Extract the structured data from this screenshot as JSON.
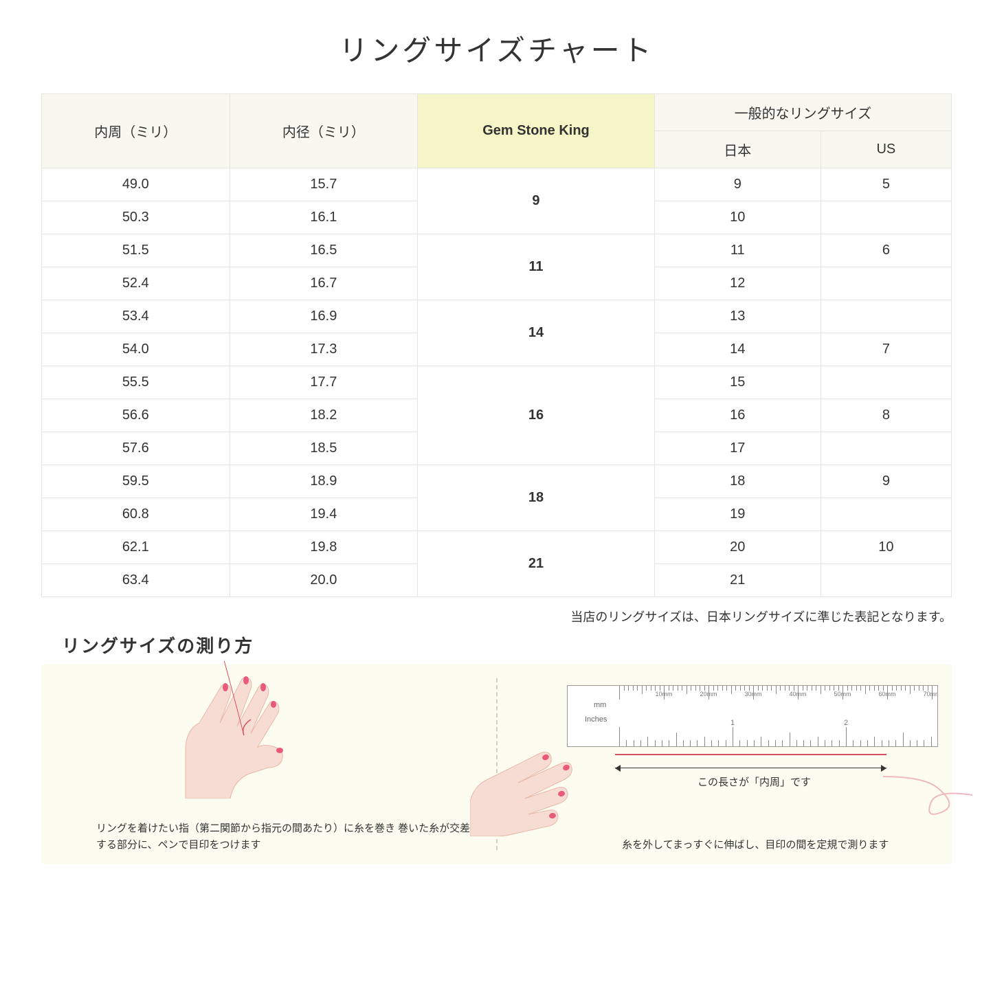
{
  "title": "リングサイズチャート",
  "note": "当店のリングサイズは、日本リングサイズに準じた表記となります。",
  "howto_title": "リングサイズの測り方",
  "table": {
    "headers": {
      "circumference": "内周（ミリ）",
      "diameter": "内径（ミリ）",
      "gsk": "Gem Stone King",
      "common": "一般的なリングサイズ",
      "japan": "日本",
      "us": "US"
    },
    "highlight_bg": "#f5f5c8",
    "header_bg": "#f8f8f0",
    "border_color": "#e5e5e0",
    "rows": [
      {
        "circ": "49.0",
        "dia": "15.7",
        "gsk": "9",
        "gsk_span": 2,
        "jp": "9",
        "us": "5"
      },
      {
        "circ": "50.3",
        "dia": "16.1",
        "jp": "10",
        "us": ""
      },
      {
        "circ": "51.5",
        "dia": "16.5",
        "gsk": "11",
        "gsk_span": 2,
        "jp": "11",
        "us": "6"
      },
      {
        "circ": "52.4",
        "dia": "16.7",
        "jp": "12",
        "us": ""
      },
      {
        "circ": "53.4",
        "dia": "16.9",
        "gsk": "14",
        "gsk_span": 2,
        "jp": "13",
        "us": ""
      },
      {
        "circ": "54.0",
        "dia": "17.3",
        "jp": "14",
        "us": "7"
      },
      {
        "circ": "55.5",
        "dia": "17.7",
        "gsk": "16",
        "gsk_span": 3,
        "jp": "15",
        "us": ""
      },
      {
        "circ": "56.6",
        "dia": "18.2",
        "jp": "16",
        "us": "8"
      },
      {
        "circ": "57.6",
        "dia": "18.5",
        "jp": "17",
        "us": ""
      },
      {
        "circ": "59.5",
        "dia": "18.9",
        "gsk": "18",
        "gsk_span": 2,
        "jp": "18",
        "us": "9"
      },
      {
        "circ": "60.8",
        "dia": "19.4",
        "jp": "19",
        "us": ""
      },
      {
        "circ": "62.1",
        "dia": "19.8",
        "gsk": "21",
        "gsk_span": 2,
        "jp": "20",
        "us": "10"
      },
      {
        "circ": "63.4",
        "dia": "20.0",
        "jp": "21",
        "us": ""
      }
    ]
  },
  "howto": {
    "bg_color": "#fdfcf0",
    "divider_color": "#d0d0c0",
    "left_caption": "リングを着けたい指（第二関節から指元の間あたり）に糸を巻き\n巻いた糸が交差する部分に、ペンで目印をつけます",
    "right_caption": "糸を外してまっすぐに伸ばし、目印の間を定規で測ります",
    "measure_label": "この長さが「内周」です",
    "ruler": {
      "mm_label": "mm",
      "inches_label": "Inches",
      "mm_marks": [
        "10mm",
        "20mm",
        "30mm",
        "40mm",
        "50mm",
        "60mm",
        "70mm"
      ],
      "inch_marks": [
        "1",
        "2"
      ]
    },
    "hand_skin": "#f7dcd4",
    "hand_outline": "#e8b8a8",
    "nail_color": "#e85a7a",
    "thread_color": "#d94f5c"
  }
}
